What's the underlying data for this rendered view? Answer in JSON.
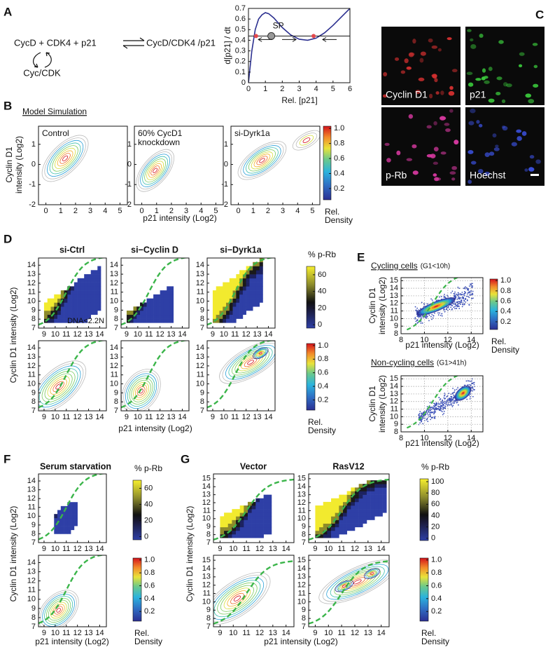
{
  "a": {
    "letter": "A",
    "reactants": "CycD + CDK4 + p21",
    "complex": "CycD/CDK4 /p21",
    "enzyme": "Cyc/CDK",
    "ylabel": "d[p21] / dt",
    "xlabel": "Rel. [p21]",
    "sp": "SP",
    "xlim": [
      0,
      6
    ],
    "ylim": [
      0,
      0.7
    ],
    "xticks": [
      0,
      1,
      2,
      3,
      4,
      5,
      6
    ],
    "yticks": [
      0,
      0.1,
      0.2,
      0.3,
      0.4,
      0.5,
      0.6,
      0.7
    ],
    "curve": {
      "x": [
        0,
        0.2,
        0.4,
        0.6,
        0.8,
        1,
        1.2,
        1.5,
        2,
        2.5,
        3,
        3.5,
        4,
        4.5,
        5,
        5.5,
        6
      ],
      "y": [
        0,
        0.3,
        0.5,
        0.6,
        0.64,
        0.66,
        0.65,
        0.61,
        0.52,
        0.45,
        0.41,
        0.4,
        0.42,
        0.47,
        0.54,
        0.62,
        0.7
      ]
    },
    "level": 0.44,
    "fixed_points": [
      0.45,
      1.35,
      3.85
    ]
  },
  "b": {
    "letter": "B",
    "title": "Model Simulation",
    "ylabel": [
      "Cyclin D1",
      "intensity (Log2)"
    ],
    "xlabel": "p21 intensity (Log2)",
    "plots": [
      [
        "Control"
      ],
      [
        "60% CycD1",
        "knockdown"
      ],
      [
        "si-Dyrk1a"
      ]
    ],
    "xlim": [
      -0.5,
      5.5
    ],
    "ylim": [
      -2,
      1.9
    ],
    "xticks": [
      0,
      1,
      2,
      3,
      4,
      5
    ],
    "yticks": [
      -2,
      -1,
      0,
      1
    ],
    "density_bar": {
      "lim": [
        0.05,
        1.03
      ],
      "ticks": [
        0.2,
        0.4,
        0.6,
        0.8,
        {
          "value": 1,
          "label": "1.0"
        }
      ],
      "label": [
        "Rel.",
        "Density"
      ]
    }
  },
  "c": {
    "letter": "C",
    "labels": [
      "Cyclin D1",
      "p21",
      "p-Rb",
      "Hoechst"
    ]
  },
  "d": {
    "letter": "D",
    "titles": [
      "si-Ctrl",
      "si−Cyclin D",
      "si−Dyrk1a"
    ],
    "annotation": "DNA<2.2N",
    "ylabel": "Cyclin D1 intensity (Log2)",
    "xlabel": "p21 intensity (Log2)",
    "xlim": [
      8.5,
      14.6
    ],
    "ylim": [
      7,
      14.8
    ],
    "xticks": [
      9,
      10,
      11,
      12,
      13,
      14
    ],
    "yticks": [
      7,
      8,
      9,
      10,
      11,
      12,
      13,
      14
    ],
    "prb_bar": {
      "label": "% p-Rb",
      "lim": [
        -4,
        70
      ],
      "ticks": [
        0,
        20,
        40,
        60
      ]
    },
    "density_bar": {
      "lim": [
        0.05,
        1.03
      ],
      "ticks": [
        0.2,
        0.4,
        0.6,
        0.8,
        {
          "value": 1,
          "label": "1.0"
        }
      ],
      "label": [
        "Rel.",
        "Density"
      ]
    }
  },
  "e": {
    "letter": "E",
    "plots": [
      {
        "title": "Cycling cells",
        "condition": "(G1<10h)"
      },
      {
        "title": "Non-cycling cells",
        "condition": "(G1>41h)"
      }
    ],
    "ylabel": [
      "Cyclin D1",
      "intensity (Log2)"
    ],
    "xlabel": "p21 intensity (Log2)",
    "xlim": [
      8,
      15
    ],
    "ylim": [
      8,
      15.4
    ],
    "xticks": [
      8,
      10,
      12,
      14
    ],
    "yticks": [
      8,
      9,
      10,
      11,
      12,
      13,
      14,
      15
    ],
    "density_bar": {
      "lim": [
        0.05,
        1.03
      ],
      "ticks": [
        0.2,
        0.4,
        0.6,
        0.8,
        {
          "value": 1,
          "label": "1.0"
        }
      ],
      "label": [
        "Rel.",
        "Density"
      ]
    }
  },
  "f": {
    "letter": "F",
    "title": "Serum starvation",
    "ylabel": "Cyclin D1 intensity (Log2)",
    "xlabel": "p21 intensity (Log2)",
    "xlim": [
      8.5,
      14.6
    ],
    "ylim": [
      7,
      14.8
    ],
    "xticks": [
      9,
      10,
      11,
      12,
      13,
      14
    ],
    "yticks": [
      7,
      8,
      9,
      10,
      11,
      12,
      13,
      14
    ],
    "prb_bar": {
      "label": "% p-Rb",
      "lim": [
        -4,
        70
      ],
      "ticks": [
        0,
        20,
        40,
        60
      ]
    },
    "density_bar": {
      "lim": [
        0.05,
        1.03
      ],
      "ticks": [
        0.2,
        0.4,
        0.6,
        0.8,
        {
          "value": 1,
          "label": "1.0"
        }
      ],
      "label": [
        "Rel.",
        "Density"
      ]
    }
  },
  "g": {
    "letter": "G",
    "titles": [
      "Vector",
      "RasV12"
    ],
    "ylabel": "Cyclin D1 intensity (Log2)",
    "xlabel": "p21 intensity (Log2)",
    "xlim": [
      8.5,
      14.6
    ],
    "ylim": [
      7,
      15.6
    ],
    "xticks": [
      9,
      10,
      11,
      12,
      13,
      14
    ],
    "yticks": [
      7,
      8,
      9,
      10,
      11,
      12,
      13,
      14,
      15
    ],
    "prb_bar": {
      "label": "% p-Rb",
      "lim": [
        -4,
        105
      ],
      "ticks": [
        0,
        20,
        40,
        60,
        80,
        100
      ]
    },
    "density_bar": {
      "lim": [
        0.05,
        1.03
      ],
      "ticks": [
        0.2,
        0.4,
        0.6,
        0.8,
        {
          "value": 1,
          "label": "1.0"
        }
      ],
      "label": [
        "Rel.",
        "Density"
      ]
    }
  }
}
